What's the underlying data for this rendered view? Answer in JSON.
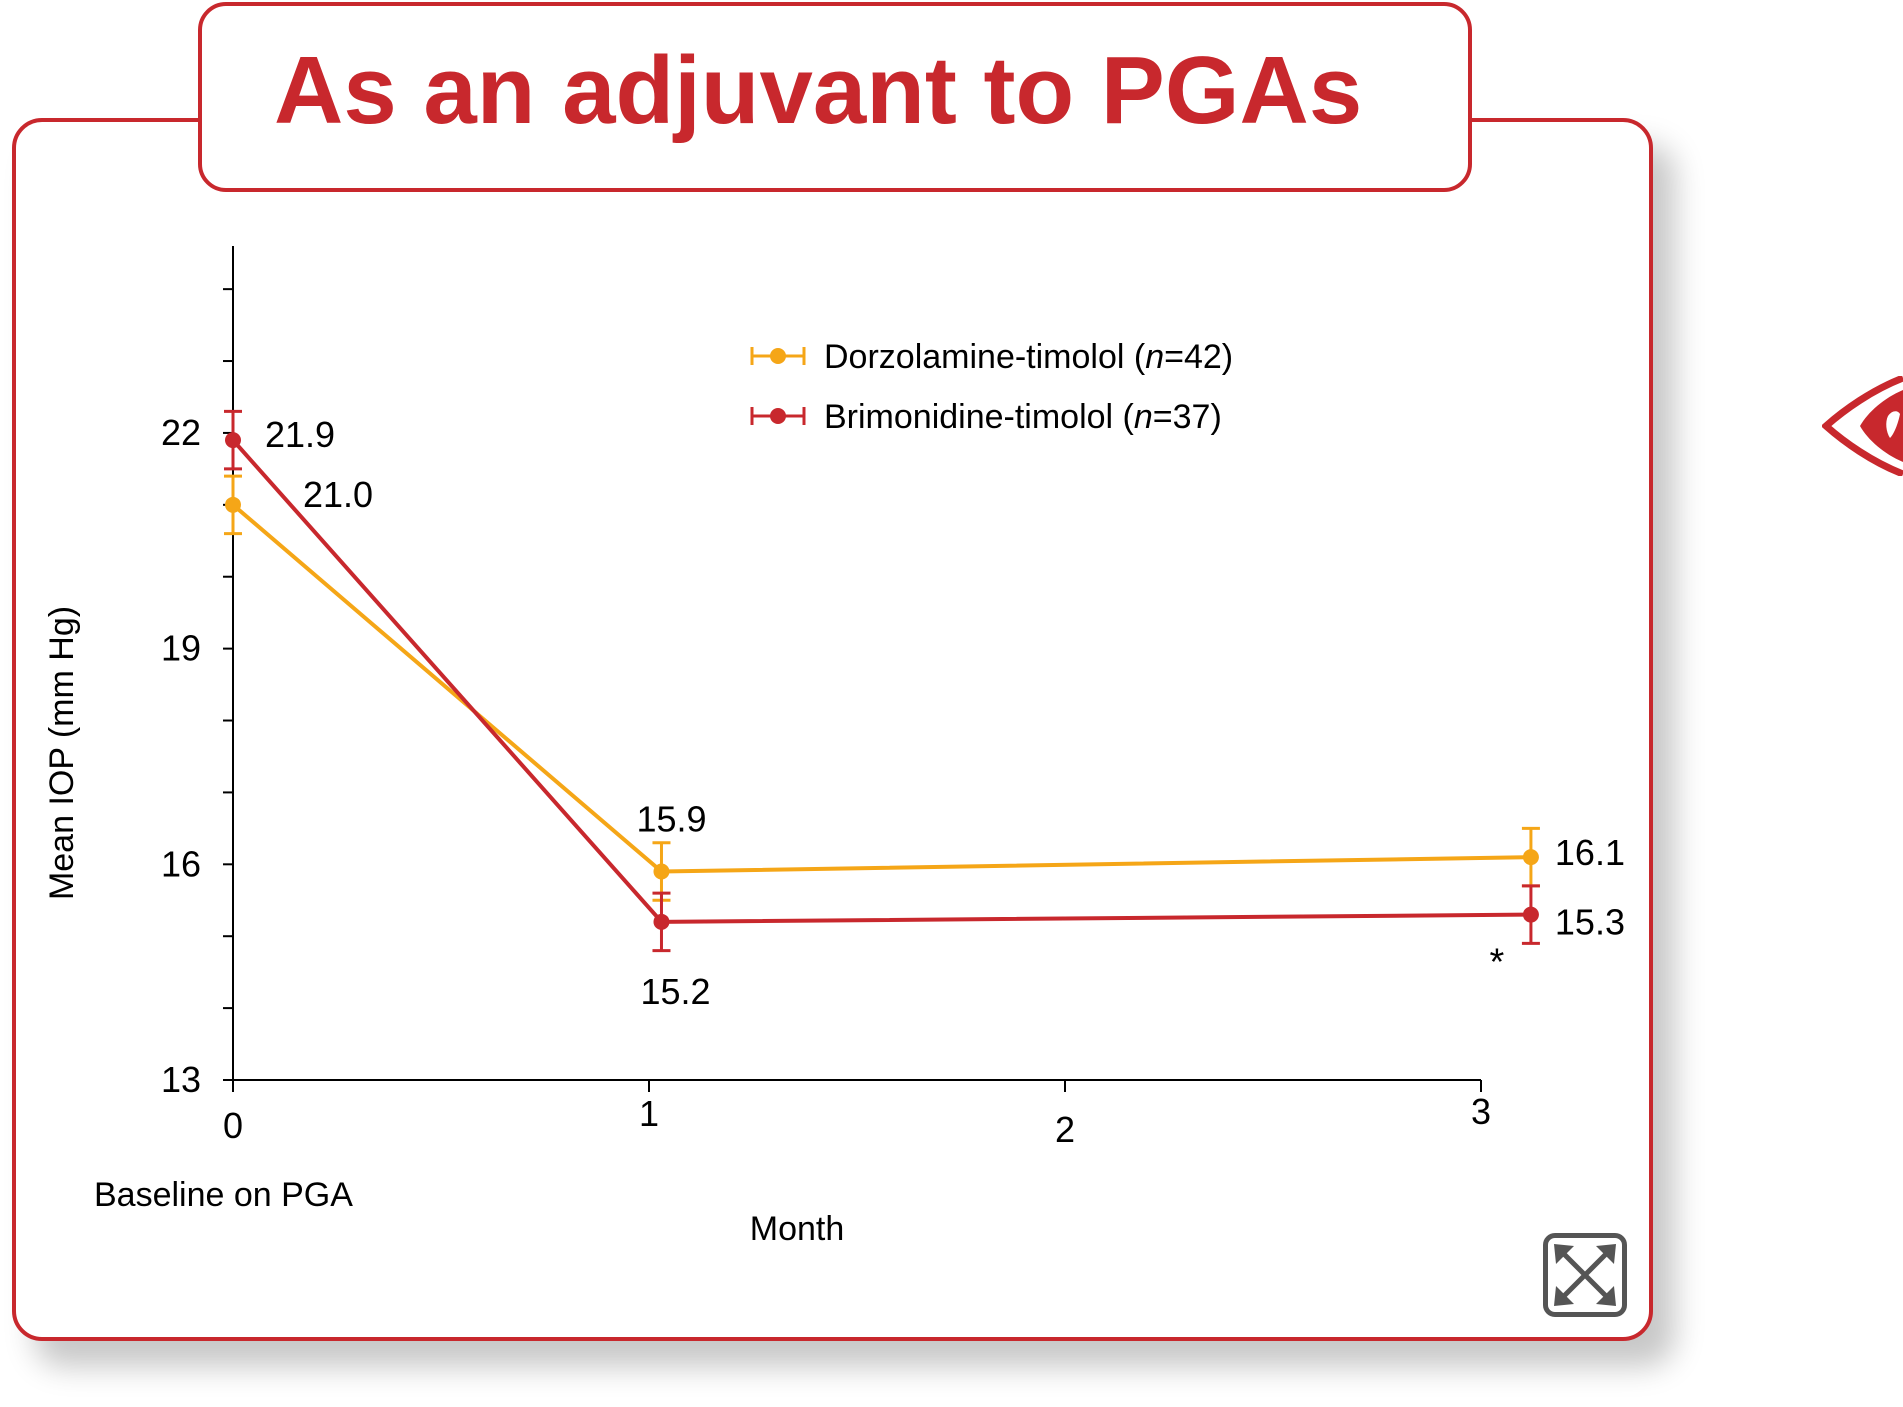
{
  "title": "As an adjuvant to PGAs",
  "colors": {
    "accent": "#c8282d",
    "dorzolamine": "#f5a617",
    "brimonidine": "#c8282d"
  },
  "icons": {
    "expand": "expand-icon",
    "eye": "eye-icon"
  },
  "chart_data": {
    "type": "line",
    "ylabel": "Mean IOP (mm Hg)",
    "xlabel": "Month",
    "x_note": "Baseline on PGA",
    "x_ticks": [
      "0",
      "1",
      "2",
      "3"
    ],
    "y_ticks": [
      "13",
      "16",
      "19",
      "22"
    ],
    "ylim": [
      13,
      24.6
    ],
    "xlim": [
      0,
      3
    ],
    "grid": false,
    "legend_position": "top-right",
    "series": [
      {
        "name": "Dorzolamine-timolol",
        "n_label": "n",
        "n_value": "=42",
        "color": "#f5a617",
        "x": [
          0,
          1.03,
          3.12
        ],
        "y": [
          21.0,
          15.9,
          16.1
        ],
        "error": [
          0.4,
          0.4,
          0.4
        ],
        "labels": [
          "21.0",
          "15.9",
          "16.1"
        ]
      },
      {
        "name": "Brimonidine-timolol",
        "n_label": "n",
        "n_value": "=37",
        "color": "#c8282d",
        "x": [
          0,
          1.03,
          3.12
        ],
        "y": [
          21.9,
          15.2,
          15.3
        ],
        "error": [
          0.4,
          0.4,
          0.4
        ],
        "labels": [
          "21.9",
          "15.2",
          "15.3"
        ]
      }
    ],
    "annotations": [
      "*"
    ]
  }
}
